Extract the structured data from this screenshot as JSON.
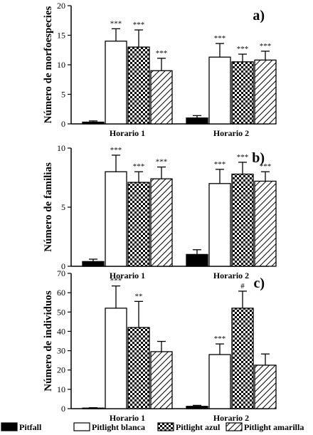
{
  "colors": {
    "ink": "#000000",
    "background": "#ffffff"
  },
  "legend": {
    "position": "bottom",
    "items": [
      {
        "label": "Pitfall",
        "pattern": "solid"
      },
      {
        "label": "Pitlight blanca",
        "pattern": "white"
      },
      {
        "label": "Pitlight azul",
        "pattern": "checker"
      },
      {
        "label": "Pitlight amarilla",
        "pattern": "hatch"
      }
    ]
  },
  "chart_data": [
    {
      "type": "bar",
      "panel_label": "a)",
      "ylabel": "Número de morfoespecies",
      "ylim": [
        0,
        20
      ],
      "yticks": [
        0,
        5,
        10,
        15,
        20
      ],
      "categories": [
        "Horario 1",
        "Horario 2"
      ],
      "series": [
        {
          "name": "Pitfall",
          "values": [
            0.3,
            1.0
          ],
          "errors": [
            0.2,
            0.4
          ],
          "annotations": [
            "",
            ""
          ]
        },
        {
          "name": "Pitlight blanca",
          "values": [
            14,
            11.3
          ],
          "errors": [
            2.1,
            2.3
          ],
          "annotations": [
            "***",
            "***"
          ]
        },
        {
          "name": "Pitlight azul",
          "values": [
            13,
            10.5
          ],
          "errors": [
            2.9,
            1.3
          ],
          "annotations": [
            "***",
            "***"
          ]
        },
        {
          "name": "Pitlight amarilla",
          "values": [
            9,
            10.8
          ],
          "errors": [
            2.1,
            1.5
          ],
          "annotations": [
            "***",
            "***"
          ]
        }
      ]
    },
    {
      "type": "bar",
      "panel_label": "b)",
      "ylabel": "Número de familias",
      "ylim": [
        0,
        10
      ],
      "yticks": [
        0,
        5,
        10
      ],
      "categories": [
        "Horario 1",
        "Horario 2"
      ],
      "series": [
        {
          "name": "Pitfall",
          "values": [
            0.4,
            1.0
          ],
          "errors": [
            0.2,
            0.4
          ],
          "annotations": [
            "",
            ""
          ]
        },
        {
          "name": "Pitlight blanca",
          "values": [
            8,
            7
          ],
          "errors": [
            1.4,
            1.2
          ],
          "annotations": [
            "***",
            "***"
          ]
        },
        {
          "name": "Pitlight azul",
          "values": [
            7.1,
            7.8
          ],
          "errors": [
            0.9,
            1.0
          ],
          "annotations": [
            "***",
            "***"
          ]
        },
        {
          "name": "Pitlight amarilla",
          "values": [
            7.4,
            7.2
          ],
          "errors": [
            1.0,
            0.8
          ],
          "annotations": [
            "***",
            "***"
          ]
        }
      ]
    },
    {
      "type": "bar",
      "panel_label": "c)",
      "ylabel": "Número de individuos",
      "ylim": [
        0,
        70
      ],
      "yticks": [
        0,
        10,
        20,
        30,
        40,
        50,
        60,
        70
      ],
      "categories": [
        "Horario 1",
        "Horario 2"
      ],
      "series": [
        {
          "name": "Pitfall",
          "values": [
            0.3,
            1.2
          ],
          "errors": [
            0.2,
            0.5
          ],
          "annotations": [
            "",
            ""
          ]
        },
        {
          "name": "Pitlight blanca",
          "values": [
            52,
            28
          ],
          "errors": [
            11.5,
            5.5
          ],
          "annotations": [
            "***",
            "***"
          ]
        },
        {
          "name": "Pitlight azul",
          "values": [
            42,
            52
          ],
          "errors": [
            13.5,
            8.8
          ],
          "annotations": [
            "**",
            "#"
          ]
        },
        {
          "name": "Pitlight amarilla",
          "values": [
            29.5,
            22.5
          ],
          "errors": [
            5.3,
            5.8
          ],
          "annotations": [
            "",
            ""
          ]
        }
      ]
    }
  ]
}
